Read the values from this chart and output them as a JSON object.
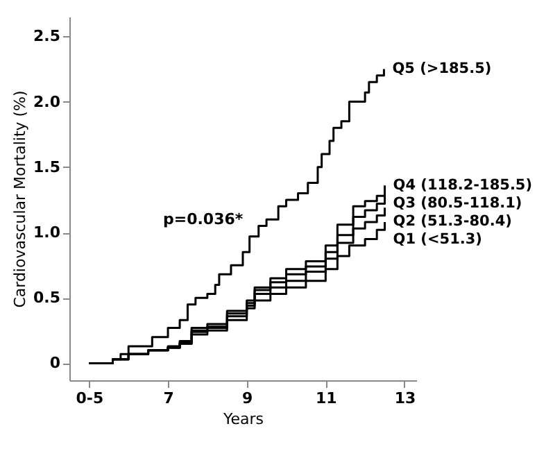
{
  "chart_data": {
    "type": "step",
    "xlabel": "Years",
    "ylabel": "Cardiovascular Mortality (%)",
    "xlim": [
      4.5,
      13.3
    ],
    "xticks": [
      {
        "value": 5,
        "label": "0-5"
      },
      7,
      9,
      11,
      13
    ],
    "ylim": [
      -0.13,
      2.65
    ],
    "yticks": [
      0,
      0.5,
      {
        "value": 1,
        "label": "1.0"
      },
      1.5,
      {
        "value": 2,
        "label": "2.0"
      },
      2.5
    ],
    "grid": false,
    "marker": "none",
    "line_style": "solid",
    "annotations": [
      "p=0.036*"
    ],
    "series": [
      {
        "name": "Q5 (>185.5)",
        "color": "#000000",
        "x": [
          5,
          5.6,
          5.8,
          6.0,
          6.6,
          7.0,
          7.3,
          7.5,
          7.7,
          8.0,
          8.2,
          8.3,
          8.6,
          8.9,
          9.07,
          9.3,
          9.5,
          9.8,
          10.0,
          10.3,
          10.55,
          10.8,
          10.9,
          11.1,
          11.2,
          11.4,
          11.6,
          11.8,
          12.0,
          12.1,
          12.3,
          12.48
        ],
        "values": [
          0,
          0.03,
          0.07,
          0.13,
          0.2,
          0.27,
          0.33,
          0.45,
          0.5,
          0.53,
          0.6,
          0.68,
          0.75,
          0.85,
          0.97,
          1.05,
          1.1,
          1.2,
          1.25,
          1.3,
          1.38,
          1.5,
          1.6,
          1.7,
          1.8,
          1.85,
          2.0,
          2.0,
          2.07,
          2.15,
          2.2,
          2.25
        ]
      },
      {
        "name": "Q4 (118.2-185.5)",
        "color": "#000000",
        "x": [
          5,
          5.6,
          6.0,
          6.5,
          7.0,
          7.3,
          7.6,
          8.0,
          8.5,
          9.0,
          9.2,
          9.6,
          10.0,
          10.5,
          11.0,
          11.3,
          11.7,
          12.0,
          12.3,
          12.5
        ],
        "values": [
          0,
          0.03,
          0.07,
          0.1,
          0.13,
          0.17,
          0.27,
          0.3,
          0.4,
          0.48,
          0.58,
          0.65,
          0.72,
          0.78,
          0.9,
          1.06,
          1.2,
          1.24,
          1.28,
          1.36
        ]
      },
      {
        "name": "Q3 (80.5-118.1)",
        "color": "#000000",
        "x": [
          5,
          5.6,
          6.0,
          6.5,
          7.0,
          7.3,
          7.6,
          8.0,
          8.5,
          9.0,
          9.2,
          9.6,
          10.0,
          10.5,
          11.0,
          11.3,
          11.7,
          12.0,
          12.3,
          12.5
        ],
        "values": [
          0,
          0.03,
          0.07,
          0.1,
          0.12,
          0.16,
          0.25,
          0.28,
          0.38,
          0.46,
          0.56,
          0.62,
          0.68,
          0.74,
          0.85,
          0.98,
          1.12,
          1.17,
          1.22,
          1.29
        ]
      },
      {
        "name": "Q2 (51.3-80.4)",
        "color": "#000000",
        "x": [
          5,
          5.6,
          6.0,
          6.5,
          7.0,
          7.3,
          7.6,
          8.0,
          8.5,
          9.0,
          9.2,
          9.6,
          10.0,
          10.5,
          11.0,
          11.3,
          11.7,
          12.0,
          12.3,
          12.5
        ],
        "values": [
          0,
          0.03,
          0.07,
          0.1,
          0.12,
          0.15,
          0.24,
          0.27,
          0.36,
          0.44,
          0.53,
          0.58,
          0.63,
          0.7,
          0.8,
          0.92,
          1.03,
          1.08,
          1.13,
          1.19
        ]
      },
      {
        "name": "Q1 (<51.3)",
        "color": "#000000",
        "x": [
          5,
          5.6,
          6.0,
          6.5,
          7.0,
          7.3,
          7.6,
          8.0,
          8.5,
          9.0,
          9.2,
          9.6,
          10.0,
          10.5,
          11.0,
          11.3,
          11.6,
          12.0,
          12.3,
          12.5
        ],
        "values": [
          0,
          0.03,
          0.07,
          0.1,
          0.12,
          0.15,
          0.22,
          0.25,
          0.33,
          0.42,
          0.48,
          0.53,
          0.58,
          0.63,
          0.72,
          0.82,
          0.9,
          0.95,
          1.02,
          1.08
        ]
      }
    ]
  }
}
